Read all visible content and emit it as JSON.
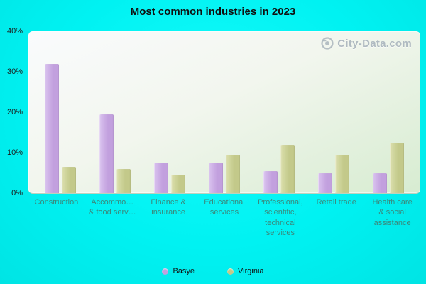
{
  "watermark": "City-Data.com",
  "chart_data": {
    "type": "bar",
    "title": "Most common industries in 2023",
    "categories": [
      "Construction",
      "Accommo…\n& food serv…",
      "Finance &\ninsurance",
      "Educational\nservices",
      "Professional,\nscientific,\ntechnical\nservices",
      "Retail trade",
      "Health care\n& social\nassistance"
    ],
    "series": [
      {
        "name": "Basye",
        "color": "#c2a0de",
        "color_light": "#dac3ef",
        "values": [
          32,
          19.5,
          7.5,
          7.5,
          5.5,
          5,
          5
        ]
      },
      {
        "name": "Virginia",
        "color": "#c3c98a",
        "color_light": "#dce0ae",
        "values": [
          6.5,
          6,
          4.5,
          9.5,
          12,
          9.5,
          12.5
        ]
      }
    ],
    "ylim": [
      0,
      40
    ],
    "yticks": [
      "0%",
      "10%",
      "20%",
      "30%",
      "40%"
    ],
    "grid": false,
    "legend_position": "bottom"
  }
}
